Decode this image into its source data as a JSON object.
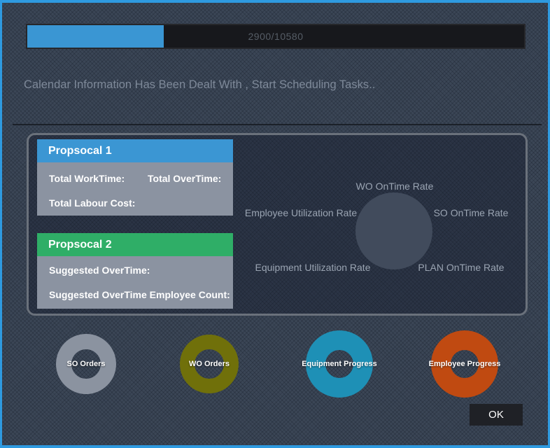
{
  "window": {
    "accent_border_color": "#2e9ae0",
    "background_color": "#3b4656"
  },
  "progress_bar": {
    "label": "2900/10580",
    "value": 2900,
    "max": 10580,
    "percent": 27.4,
    "fill_color": "#3a96d3",
    "track_color": "#17181c"
  },
  "status": {
    "message": "Calendar Information Has Been Dealt With , Start Scheduling Tasks.."
  },
  "proposals": {
    "proposal1": {
      "title": "Propsocal 1",
      "header_color": "#3b96d3",
      "field_work_time": "Total WorkTime:",
      "field_over_time": "Total OverTime:",
      "field_labour_cost": "Total Labour Cost:"
    },
    "proposal2": {
      "title": "Propsocal 2",
      "header_color": "#2fae67",
      "field_suggested_overtime": "Suggested OverTime:",
      "field_suggested_overtime_count": "Suggested OverTime Employee Count:"
    }
  },
  "radar": {
    "circle_color": "#414b5c",
    "labels": {
      "top": "WO OnTime Rate",
      "left": "Employee Utilization Rate",
      "right": "SO OnTime Rate",
      "bottom_left": "Equipment Utilization Rate",
      "bottom_right": "PLAN OnTime Rate"
    }
  },
  "donuts": [
    {
      "label": "SO Orders",
      "color": "#8b93a0"
    },
    {
      "label": "WO Orders",
      "color": "#70700a"
    },
    {
      "label": "Equipment Progress",
      "color": "#1e90b6"
    },
    {
      "label": "Employee Progress",
      "color": "#c04a11"
    }
  ],
  "footer": {
    "ok_label": "OK"
  }
}
